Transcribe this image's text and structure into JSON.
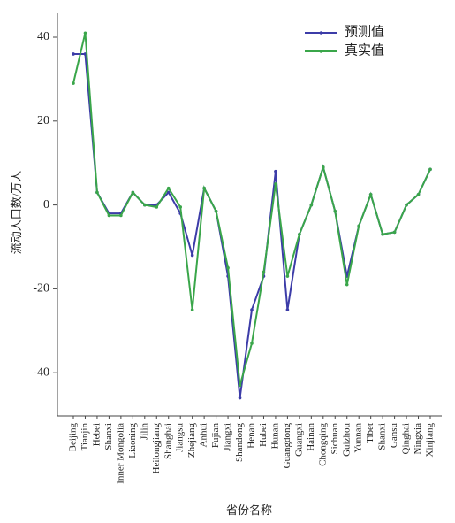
{
  "chart_data": {
    "type": "line",
    "xlabel": "省份名称",
    "ylabel": "流动人口数/万人",
    "categories": [
      "Beijing",
      "Tianjin",
      "Hebei",
      "Shanxi",
      "Inner Mongolia",
      "Liaoning",
      "Jilin",
      "Heilongjiang",
      "Shanghai",
      "Jiangsu",
      "Zhejiang",
      "Anhui",
      "Fujian",
      "Jiangxi",
      "Shandong",
      "Henan",
      "Hubei",
      "Hunan",
      "Guangdong",
      "Guangxi",
      "Hainan",
      "Chongqing",
      "Sichuan",
      "Guizhou",
      "Yunnan",
      "Tibet",
      "Shanxi",
      "Gansu",
      "Qinghai",
      "Ningxia",
      "Xinjiang"
    ],
    "series": [
      {
        "name": "预测值",
        "color": "#3c3ca8",
        "values": [
          36,
          36,
          3,
          -2,
          -2,
          3,
          0,
          0,
          3,
          -2,
          -12,
          4,
          -1.5,
          -17,
          -46,
          -25,
          -17,
          8,
          -25,
          -7,
          0,
          9,
          -1.5,
          -17,
          -5,
          2.5,
          -7,
          -6.5,
          0,
          2.5,
          8.5
        ]
      },
      {
        "name": "真实值",
        "color": "#3aa64a",
        "values": [
          29,
          41,
          3,
          -2.5,
          -2.5,
          3,
          0,
          -0.5,
          4,
          -0.5,
          -25,
          4,
          -1.5,
          -15,
          -43,
          -33,
          -16,
          5,
          -17,
          -7,
          0,
          9,
          -1.5,
          -19,
          -5,
          2.5,
          -7,
          -6.5,
          0,
          2.5,
          8.5
        ]
      }
    ],
    "ylim": [
      -50.3,
      45.7
    ],
    "yticks": [
      -40,
      -20,
      0,
      20,
      40
    ],
    "legend": "upper right"
  }
}
